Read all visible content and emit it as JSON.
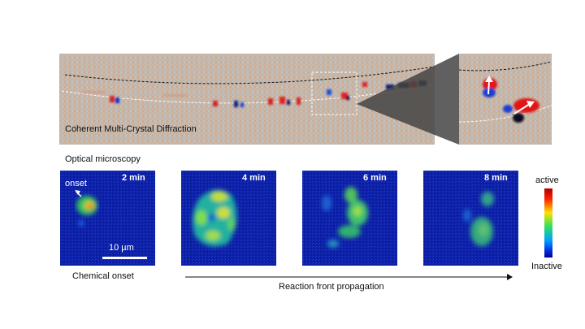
{
  "diffraction": {
    "caption": "Coherent Multi-Crystal Diffraction"
  },
  "microscopy": {
    "title": "Optical microscopy",
    "onset_label": "onset",
    "scale_bar": "10 µm",
    "panels": [
      {
        "time": "2 min"
      },
      {
        "time": "4 min"
      },
      {
        "time": "6 min"
      },
      {
        "time": "8 min"
      }
    ],
    "caption_left": "Chemical onset",
    "caption_arrow": "Reaction front propagation"
  },
  "colorbar": {
    "top_label": "active",
    "bottom_label": "Inactive"
  }
}
